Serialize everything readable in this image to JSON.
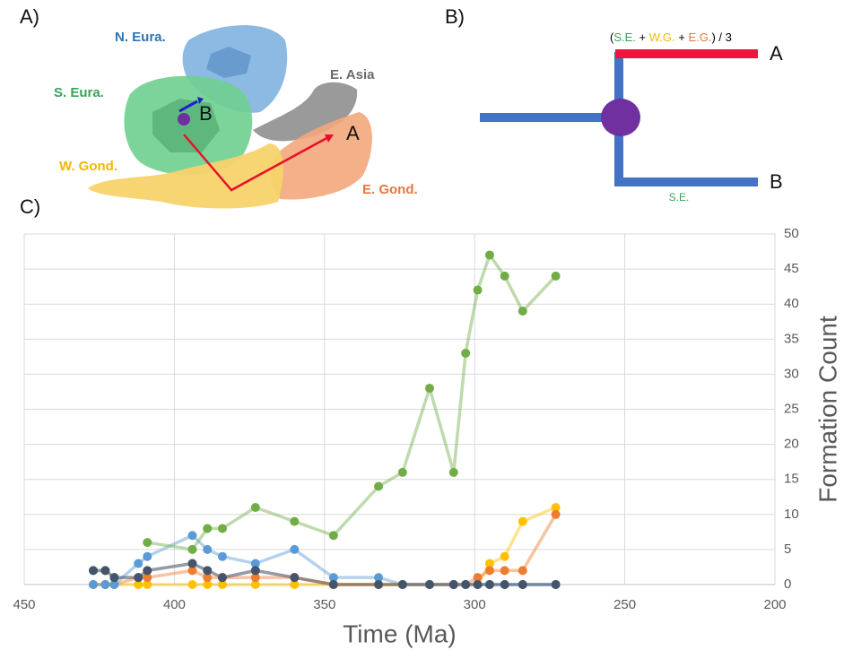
{
  "panel_a": {
    "label": "A)",
    "regions": [
      {
        "text": "N. Eura.",
        "color": "#2e75b6"
      },
      {
        "text": "S. Eura.",
        "color": "#3aa35a"
      },
      {
        "text": "E. Asia",
        "color": "#6b6b6b"
      },
      {
        "text": "W. Gond.",
        "color": "#f2b705"
      },
      {
        "text": "E. Gond.",
        "color": "#e8773a"
      }
    ],
    "points": [
      "B",
      "A"
    ]
  },
  "panel_b": {
    "label": "B)",
    "formula": [
      {
        "text": "(",
        "color": "#000000"
      },
      {
        "text": "S.E.",
        "color": "#3aa35a"
      },
      {
        "text": " + ",
        "color": "#000000"
      },
      {
        "text": "W.G.",
        "color": "#f2b705"
      },
      {
        "text": " + ",
        "color": "#000000"
      },
      {
        "text": "E.G.",
        "color": "#e8773a"
      },
      {
        "text": ") / 3",
        "color": "#000000"
      }
    ],
    "tips": [
      "A",
      "B"
    ],
    "branch_label": {
      "text": "S.E.",
      "color": "#3aa35a"
    }
  },
  "chart_label": "C)",
  "chart_data": {
    "type": "line",
    "x_label": "Time (Ma)",
    "y_label": "Formation Count",
    "xlim": [
      450,
      200
    ],
    "xticks": [
      450,
      400,
      350,
      300,
      250,
      200
    ],
    "ylim": [
      0,
      50
    ],
    "yticks": [
      0,
      5,
      10,
      15,
      20,
      25,
      30,
      35,
      40,
      45,
      50
    ],
    "grid": true,
    "x": [
      427,
      423,
      420,
      412,
      409,
      394,
      389,
      384,
      373,
      360,
      347,
      332,
      324,
      315,
      307,
      303,
      299,
      295,
      290,
      284,
      273
    ],
    "series": [
      {
        "color": "#a5a5a5",
        "values": [
          2,
          2,
          1,
          1,
          2,
          3,
          2,
          1,
          2,
          1,
          0,
          0,
          0,
          0,
          0,
          0,
          0,
          0,
          0,
          0,
          0
        ]
      },
      {
        "color": "#ffc000",
        "values": [
          0,
          0,
          0,
          0,
          0,
          0,
          0,
          0,
          0,
          0,
          0,
          0,
          0,
          0,
          0,
          0,
          0,
          3,
          4,
          9,
          11
        ]
      },
      {
        "color": "#ed7d31",
        "values": [
          0,
          0,
          0,
          1,
          1,
          2,
          1,
          1,
          1,
          1,
          0,
          0,
          0,
          0,
          0,
          0,
          1,
          2,
          2,
          2,
          10
        ]
      },
      {
        "color": "#5b9bd5",
        "values": [
          0,
          0,
          0,
          3,
          4,
          7,
          5,
          4,
          3,
          5,
          1,
          1,
          0,
          0,
          0,
          0,
          0,
          0,
          0,
          0,
          0
        ]
      },
      {
        "color": "#70ad47",
        "values": [
          null,
          null,
          null,
          null,
          6,
          5,
          8,
          8,
          11,
          9,
          7,
          14,
          16,
          28,
          16,
          33,
          42,
          47,
          44,
          39,
          44
        ]
      },
      {
        "color": "#44546a",
        "values": [
          2,
          2,
          1,
          1,
          2,
          3,
          2,
          1,
          2,
          1,
          0,
          0,
          0,
          0,
          0,
          0,
          0,
          0,
          0,
          0,
          0
        ]
      }
    ]
  }
}
